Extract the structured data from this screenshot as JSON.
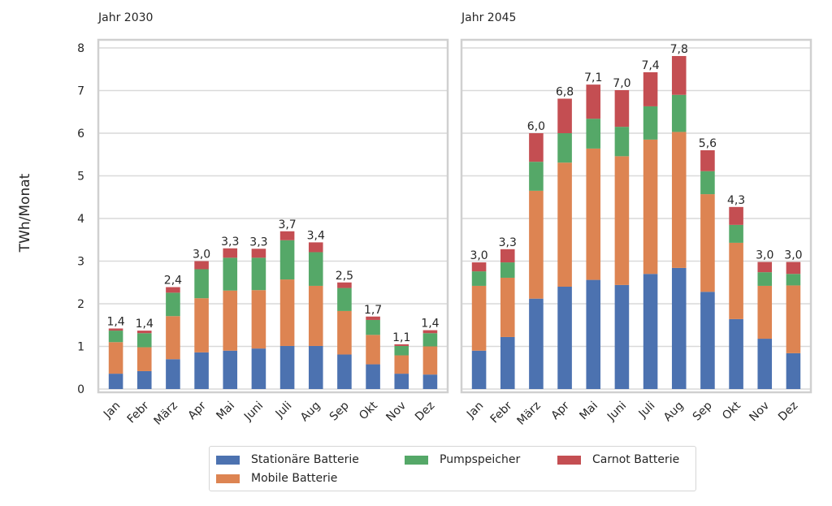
{
  "chart_data": {
    "type": "bar",
    "stacked": true,
    "ylabel": "TWh/Monat",
    "ylim": [
      0,
      8.2
    ],
    "yticks": [
      "0",
      "1",
      "2",
      "3",
      "4",
      "5",
      "6",
      "7",
      "8"
    ],
    "grid": true,
    "legend_position": "bottom-center",
    "categories": [
      "Jan",
      "Febr",
      "März",
      "Apr",
      "Mai",
      "Juni",
      "Juli",
      "Aug",
      "Sep",
      "Okt",
      "Nov",
      "Dez"
    ],
    "series_meta": [
      {
        "name": "Stationäre Batterie",
        "color": "#4c72b0"
      },
      {
        "name": "Mobile Batterie",
        "color": "#dd8452"
      },
      {
        "name": "Pumpspeicher",
        "color": "#55a868"
      },
      {
        "name": "Carnot Batterie",
        "color": "#c44e52"
      }
    ],
    "panels": [
      {
        "title": "Jahr 2030",
        "series": [
          {
            "name": "Stationäre Batterie",
            "values": [
              0.36,
              0.42,
              0.7,
              0.86,
              0.9,
              0.95,
              1.01,
              1.01,
              0.81,
              0.58,
              0.36,
              0.34
            ]
          },
          {
            "name": "Mobile Batterie",
            "values": [
              0.74,
              0.56,
              1.01,
              1.27,
              1.41,
              1.37,
              1.56,
              1.41,
              1.02,
              0.69,
              0.43,
              0.66
            ]
          },
          {
            "name": "Pumpspeicher",
            "values": [
              0.27,
              0.33,
              0.55,
              0.68,
              0.77,
              0.76,
              0.92,
              0.79,
              0.54,
              0.35,
              0.22,
              0.31
            ]
          },
          {
            "name": "Carnot Batterie",
            "values": [
              0.05,
              0.06,
              0.13,
              0.19,
              0.22,
              0.21,
              0.21,
              0.23,
              0.13,
              0.08,
              0.04,
              0.07
            ]
          }
        ],
        "totals": [
          "1,4",
          "1,4",
          "2,4",
          "3,0",
          "3,3",
          "3,3",
          "3,7",
          "3,4",
          "2,5",
          "1,7",
          "1,1",
          "1,4"
        ]
      },
      {
        "title": "Jahr 2045",
        "series": [
          {
            "name": "Stationäre Batterie",
            "values": [
              0.9,
              1.22,
              2.12,
              2.4,
              2.56,
              2.44,
              2.7,
              2.84,
              2.28,
              1.64,
              1.18,
              0.84
            ]
          },
          {
            "name": "Mobile Batterie",
            "values": [
              1.52,
              1.39,
              2.53,
              2.91,
              3.08,
              3.02,
              3.15,
              3.19,
              2.29,
              1.79,
              1.24,
              1.59
            ]
          },
          {
            "name": "Pumpspeicher",
            "values": [
              0.34,
              0.36,
              0.68,
              0.69,
              0.7,
              0.69,
              0.78,
              0.87,
              0.54,
              0.42,
              0.32,
              0.27
            ]
          },
          {
            "name": "Carnot Batterie",
            "values": [
              0.21,
              0.31,
              0.67,
              0.81,
              0.8,
              0.86,
              0.8,
              0.91,
              0.49,
              0.42,
              0.24,
              0.28
            ]
          }
        ],
        "totals": [
          "3,0",
          "3,3",
          "6,0",
          "6,8",
          "7,1",
          "7,0",
          "7,4",
          "7,8",
          "5,6",
          "4,3",
          "3,0",
          "3,0"
        ]
      }
    ]
  },
  "legend": {
    "items": [
      {
        "label": "Stationäre Batterie",
        "color": "#4c72b0"
      },
      {
        "label": "Pumpspeicher",
        "color": "#55a868"
      },
      {
        "label": "Carnot Batterie",
        "color": "#c44e52"
      },
      {
        "label": "Mobile Batterie",
        "color": "#dd8452"
      }
    ]
  }
}
